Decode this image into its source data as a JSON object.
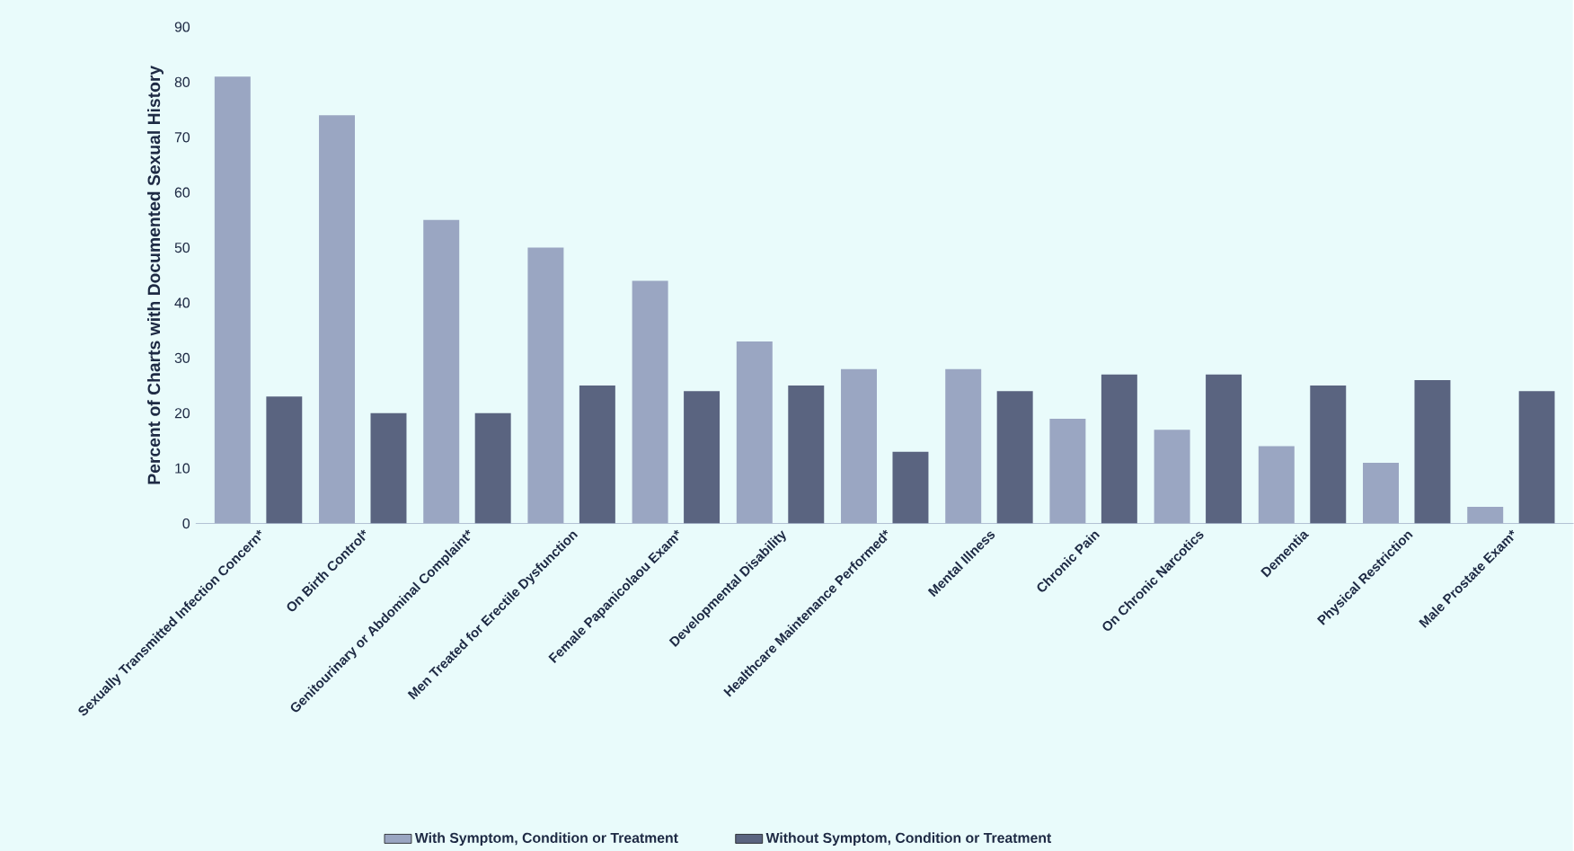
{
  "chart_data": {
    "type": "bar",
    "ylabel": "Percent of Charts with Documented Sexual History",
    "categories": [
      "Sexually Transmitted Infection Concern*",
      "On Birth Control*",
      "Genitourinary or Abdominal Complaint*",
      "Men Treated for Erectile Dysfunction",
      "Female Papanicolaou Exam*",
      "Developmental Disability",
      "Healthcare Maintenance Performed*",
      "Mental Illness",
      "Chronic Pain",
      "On Chronic Narcotics",
      "Dementia",
      "Physical Restriction",
      "Male Prostate Exam*"
    ],
    "series": [
      {
        "name": "With Symptom, Condition or Treatment",
        "color": "#9aa6c2",
        "values": [
          81,
          74,
          55,
          50,
          44,
          33,
          28,
          28,
          19,
          17,
          14,
          11,
          3
        ]
      },
      {
        "name": "Without Symptom, Condition or Treatment",
        "color": "#5a6480",
        "values": [
          23,
          20,
          20,
          25,
          24,
          25,
          13,
          24,
          27,
          27,
          25,
          26,
          24
        ]
      }
    ],
    "ylim": [
      0,
      90
    ],
    "yticks": [
      0,
      10,
      20,
      30,
      40,
      50,
      60,
      70,
      80,
      90
    ],
    "legend": "bottom",
    "grid": false
  }
}
